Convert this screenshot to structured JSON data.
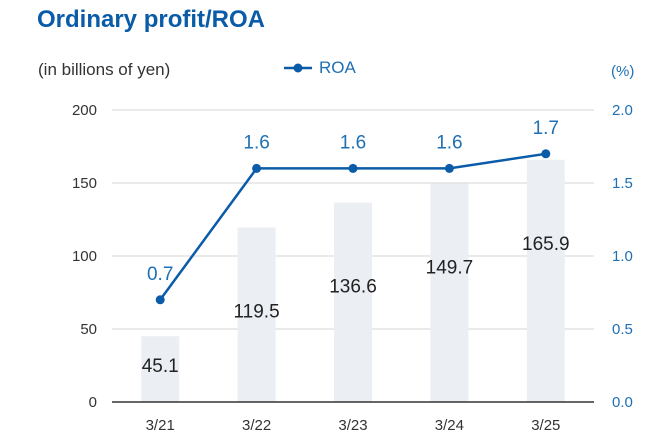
{
  "title": "Ordinary profit/ROA",
  "left_unit": "(in billions of yen)",
  "right_unit": "(%)",
  "legend": {
    "label": "ROA",
    "marker": "line-with-dot"
  },
  "colors": {
    "title": "#0a5ba8",
    "line": "#0a5ba8",
    "bar": "#ebeff3",
    "right_axis": "#1f6fb4"
  },
  "chart_data": {
    "type": "bar+line",
    "title": "Ordinary profit/ROA",
    "categories": [
      "3/21",
      "3/22",
      "3/23",
      "3/24",
      "3/25"
    ],
    "series": [
      {
        "name": "",
        "type": "bar",
        "axis": "left",
        "values": [
          45.1,
          119.5,
          136.6,
          149.7,
          165.9
        ]
      },
      {
        "name": "ROA",
        "type": "line",
        "axis": "right",
        "values": [
          0.7,
          1.6,
          1.6,
          1.6,
          1.7
        ]
      }
    ],
    "ylim_left": [
      0,
      200
    ],
    "yticks_left": [
      "0",
      "50",
      "100",
      "150",
      "200"
    ],
    "ylim_right": [
      0,
      2.0
    ],
    "yticks_right": [
      "0.0",
      "0.5",
      "1.0",
      "1.5",
      "2.0"
    ],
    "grid": "horizontal",
    "legend_position": "top-center"
  }
}
